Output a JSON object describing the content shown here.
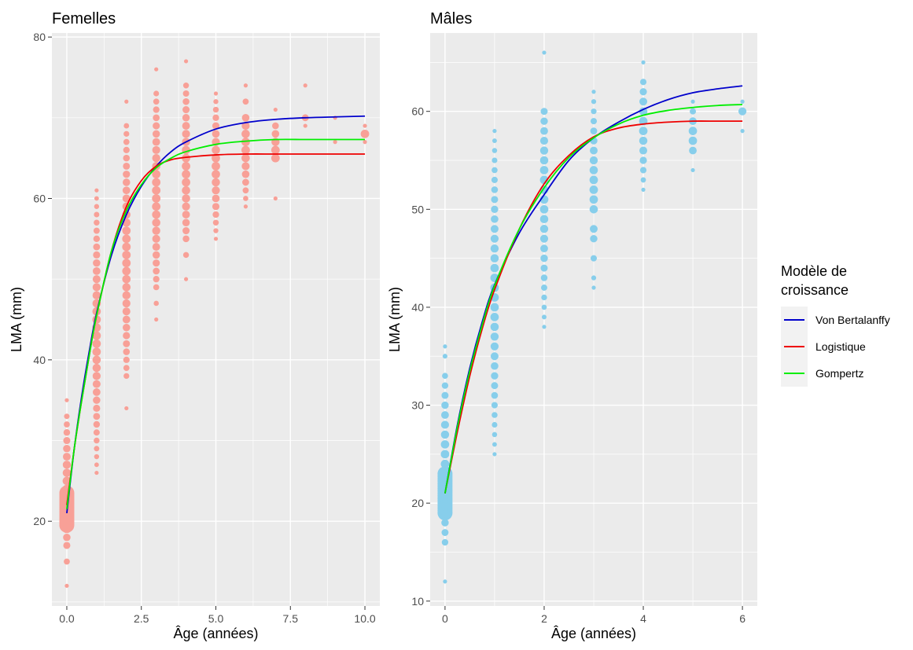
{
  "chart_data": [
    {
      "type": "scatter",
      "title": "Femelles",
      "xlabel": "Âge (années)",
      "ylabel": "LMA (mm)",
      "xlim": [
        -0.5,
        10.5
      ],
      "ylim": [
        9.5,
        80.5
      ],
      "xticks": [
        0,
        2.5,
        5,
        7.5,
        10
      ],
      "xtick_labels": [
        "0.0",
        "2.5",
        "5.0",
        "7.5",
        "10.0"
      ],
      "yticks": [
        20,
        40,
        60,
        80
      ],
      "ytick_labels": [
        "20",
        "40",
        "60",
        "80"
      ],
      "point_color": "#f8a097",
      "grid": true,
      "points": [
        {
          "age": 0,
          "lengths": [
            12,
            15,
            17,
            18,
            19,
            20,
            20.5,
            21,
            21.5,
            22,
            22.5,
            23,
            24,
            25,
            26,
            27,
            28,
            29,
            30,
            31,
            32,
            33,
            35
          ],
          "dense_range": [
            19.5,
            23.5
          ]
        },
        {
          "age": 1,
          "lengths": [
            26,
            27,
            28,
            29,
            30,
            31,
            32,
            33,
            34,
            35,
            36,
            37,
            38,
            39,
            40,
            41,
            42,
            43,
            44,
            45,
            46,
            47,
            48,
            49,
            50,
            51,
            52,
            53,
            54,
            55,
            56,
            57,
            58,
            59,
            60,
            61
          ]
        },
        {
          "age": 2,
          "lengths": [
            34,
            38,
            39,
            40,
            41,
            42,
            43,
            44,
            45,
            46,
            47,
            48,
            49,
            50,
            51,
            52,
            53,
            54,
            55,
            56,
            57,
            58,
            59,
            60,
            61,
            62,
            63,
            64,
            65,
            66,
            67,
            68,
            69,
            72
          ]
        },
        {
          "age": 3,
          "lengths": [
            45,
            47,
            49,
            50,
            51,
            52,
            53,
            54,
            55,
            56,
            57,
            58,
            59,
            60,
            61,
            62,
            63,
            64,
            65,
            66,
            67,
            68,
            69,
            70,
            71,
            72,
            73,
            76
          ]
        },
        {
          "age": 4,
          "lengths": [
            50,
            53,
            55,
            56,
            57,
            58,
            59,
            60,
            61,
            62,
            63,
            64,
            65,
            66,
            67,
            68,
            69,
            70,
            71,
            72,
            73,
            74,
            77
          ]
        },
        {
          "age": 5,
          "lengths": [
            55,
            56,
            57,
            58,
            59,
            60,
            61,
            62,
            63,
            64,
            65,
            66,
            67,
            68,
            69,
            70,
            71,
            72,
            73
          ]
        },
        {
          "age": 6,
          "lengths": [
            59,
            60,
            61,
            62,
            63,
            64,
            65,
            66,
            67,
            68,
            69,
            70,
            72,
            74
          ]
        },
        {
          "age": 7,
          "lengths": [
            60,
            65,
            66,
            67,
            68,
            69,
            71
          ]
        },
        {
          "age": 8,
          "lengths": [
            69,
            70,
            74
          ]
        },
        {
          "age": 9,
          "lengths": [
            67,
            70
          ]
        },
        {
          "age": 10,
          "lengths": [
            67,
            68,
            69
          ]
        }
      ],
      "series": [
        {
          "name": "Von Bertalanffy",
          "color": "#0000cc",
          "x": [
            0,
            0.25,
            0.5,
            0.75,
            1,
            1.5,
            2,
            2.5,
            3,
            3.5,
            4,
            5,
            6,
            7,
            8,
            9,
            10
          ],
          "y": [
            21,
            29,
            35.5,
            41,
            45.8,
            53,
            58,
            61.5,
            64,
            65.8,
            67,
            68.6,
            69.4,
            69.8,
            70,
            70.1,
            70.2
          ]
        },
        {
          "name": "Logistique",
          "color": "#ee0000",
          "x": [
            0,
            0.25,
            0.5,
            0.75,
            1,
            1.5,
            2,
            2.5,
            3,
            3.5,
            4,
            5,
            6,
            7,
            8,
            9,
            10
          ],
          "y": [
            22,
            29,
            35,
            40.5,
            45.5,
            53.5,
            59,
            62.2,
            64,
            64.8,
            65.1,
            65.4,
            65.5,
            65.5,
            65.5,
            65.5,
            65.5
          ]
        },
        {
          "name": "Gompertz",
          "color": "#00ee00",
          "x": [
            0,
            0.25,
            0.5,
            0.75,
            1,
            1.5,
            2,
            2.5,
            3,
            3.5,
            4,
            5,
            6,
            7,
            8,
            9,
            10
          ],
          "y": [
            21.5,
            29,
            35,
            40.5,
            45.5,
            53.5,
            58.5,
            61.7,
            63.8,
            65,
            65.8,
            66.7,
            67.1,
            67.3,
            67.3,
            67.3,
            67.3
          ]
        }
      ]
    },
    {
      "type": "scatter",
      "title": "Mâles",
      "xlabel": "Âge (années)",
      "ylabel": "LMA (mm)",
      "xlim": [
        -0.3,
        6.3
      ],
      "ylim": [
        9.5,
        68
      ],
      "xticks": [
        0,
        2,
        4,
        6
      ],
      "xtick_labels": [
        "0",
        "2",
        "4",
        "6"
      ],
      "yticks": [
        10,
        20,
        30,
        40,
        50,
        60
      ],
      "ytick_labels": [
        "10",
        "20",
        "30",
        "40",
        "50",
        "60"
      ],
      "point_color": "#87ceeb",
      "grid": true,
      "points": [
        {
          "age": 0,
          "lengths": [
            12,
            16,
            17,
            18,
            19,
            20,
            21,
            22,
            23,
            24,
            25,
            26,
            27,
            28,
            29,
            30,
            31,
            32,
            33,
            35,
            36
          ],
          "dense_range": [
            19,
            23
          ]
        },
        {
          "age": 1,
          "lengths": [
            25,
            26,
            27,
            28,
            29,
            30,
            31,
            32,
            33,
            34,
            35,
            36,
            37,
            38,
            39,
            40,
            41,
            42,
            43,
            44,
            45,
            46,
            47,
            48,
            49,
            50,
            51,
            52,
            53,
            54,
            55,
            56,
            57,
            58
          ]
        },
        {
          "age": 2,
          "lengths": [
            38,
            39,
            40,
            41,
            42,
            43,
            44,
            45,
            46,
            47,
            48,
            49,
            50,
            51,
            52,
            53,
            54,
            55,
            56,
            57,
            58,
            59,
            60,
            66
          ]
        },
        {
          "age": 3,
          "lengths": [
            42,
            43,
            45,
            47,
            48,
            50,
            51,
            52,
            53,
            54,
            55,
            56,
            57,
            58,
            59,
            60,
            61,
            62
          ]
        },
        {
          "age": 4,
          "lengths": [
            52,
            53,
            54,
            55,
            56,
            57,
            58,
            59,
            60,
            61,
            62,
            63,
            65
          ]
        },
        {
          "age": 5,
          "lengths": [
            54,
            56,
            57,
            58,
            59,
            60,
            61
          ]
        },
        {
          "age": 6,
          "lengths": [
            58,
            60,
            61
          ]
        }
      ],
      "series": [
        {
          "name": "Von Bertalanffy",
          "color": "#0000cc",
          "x": [
            0,
            0.25,
            0.5,
            0.75,
            1,
            1.5,
            2,
            2.5,
            3,
            3.5,
            4,
            4.5,
            5,
            5.5,
            6
          ],
          "y": [
            21,
            28,
            33.8,
            38.5,
            42.3,
            47.6,
            51.5,
            55,
            57.3,
            58.9,
            60.2,
            61.2,
            61.9,
            62.3,
            62.6
          ]
        },
        {
          "name": "Logistique",
          "color": "#ee0000",
          "x": [
            0,
            0.25,
            0.5,
            0.75,
            1,
            1.5,
            2,
            2.5,
            3,
            3.5,
            4,
            4.5,
            5,
            5.5,
            6
          ],
          "y": [
            21,
            27.3,
            33,
            37.8,
            41.8,
            48,
            52.6,
            55.5,
            57.4,
            58.3,
            58.7,
            58.9,
            59,
            59,
            59
          ]
        },
        {
          "name": "Gompertz",
          "color": "#00ee00",
          "x": [
            0,
            0.25,
            0.5,
            0.75,
            1,
            1.5,
            2,
            2.5,
            3,
            3.5,
            4,
            4.5,
            5,
            5.5,
            6
          ],
          "y": [
            21,
            27.8,
            33.5,
            38.2,
            42.2,
            48,
            52.2,
            55.3,
            57.3,
            58.7,
            59.6,
            60.1,
            60.4,
            60.6,
            60.7
          ]
        }
      ]
    }
  ],
  "legend": {
    "title_line1": "Modèle de",
    "title_line2": "croissance",
    "placement": "right",
    "items": [
      {
        "label": "Von Bertalanffy",
        "color": "#0000cc"
      },
      {
        "label": "Logistique",
        "color": "#ee0000"
      },
      {
        "label": "Gompertz",
        "color": "#00ee00"
      }
    ]
  }
}
